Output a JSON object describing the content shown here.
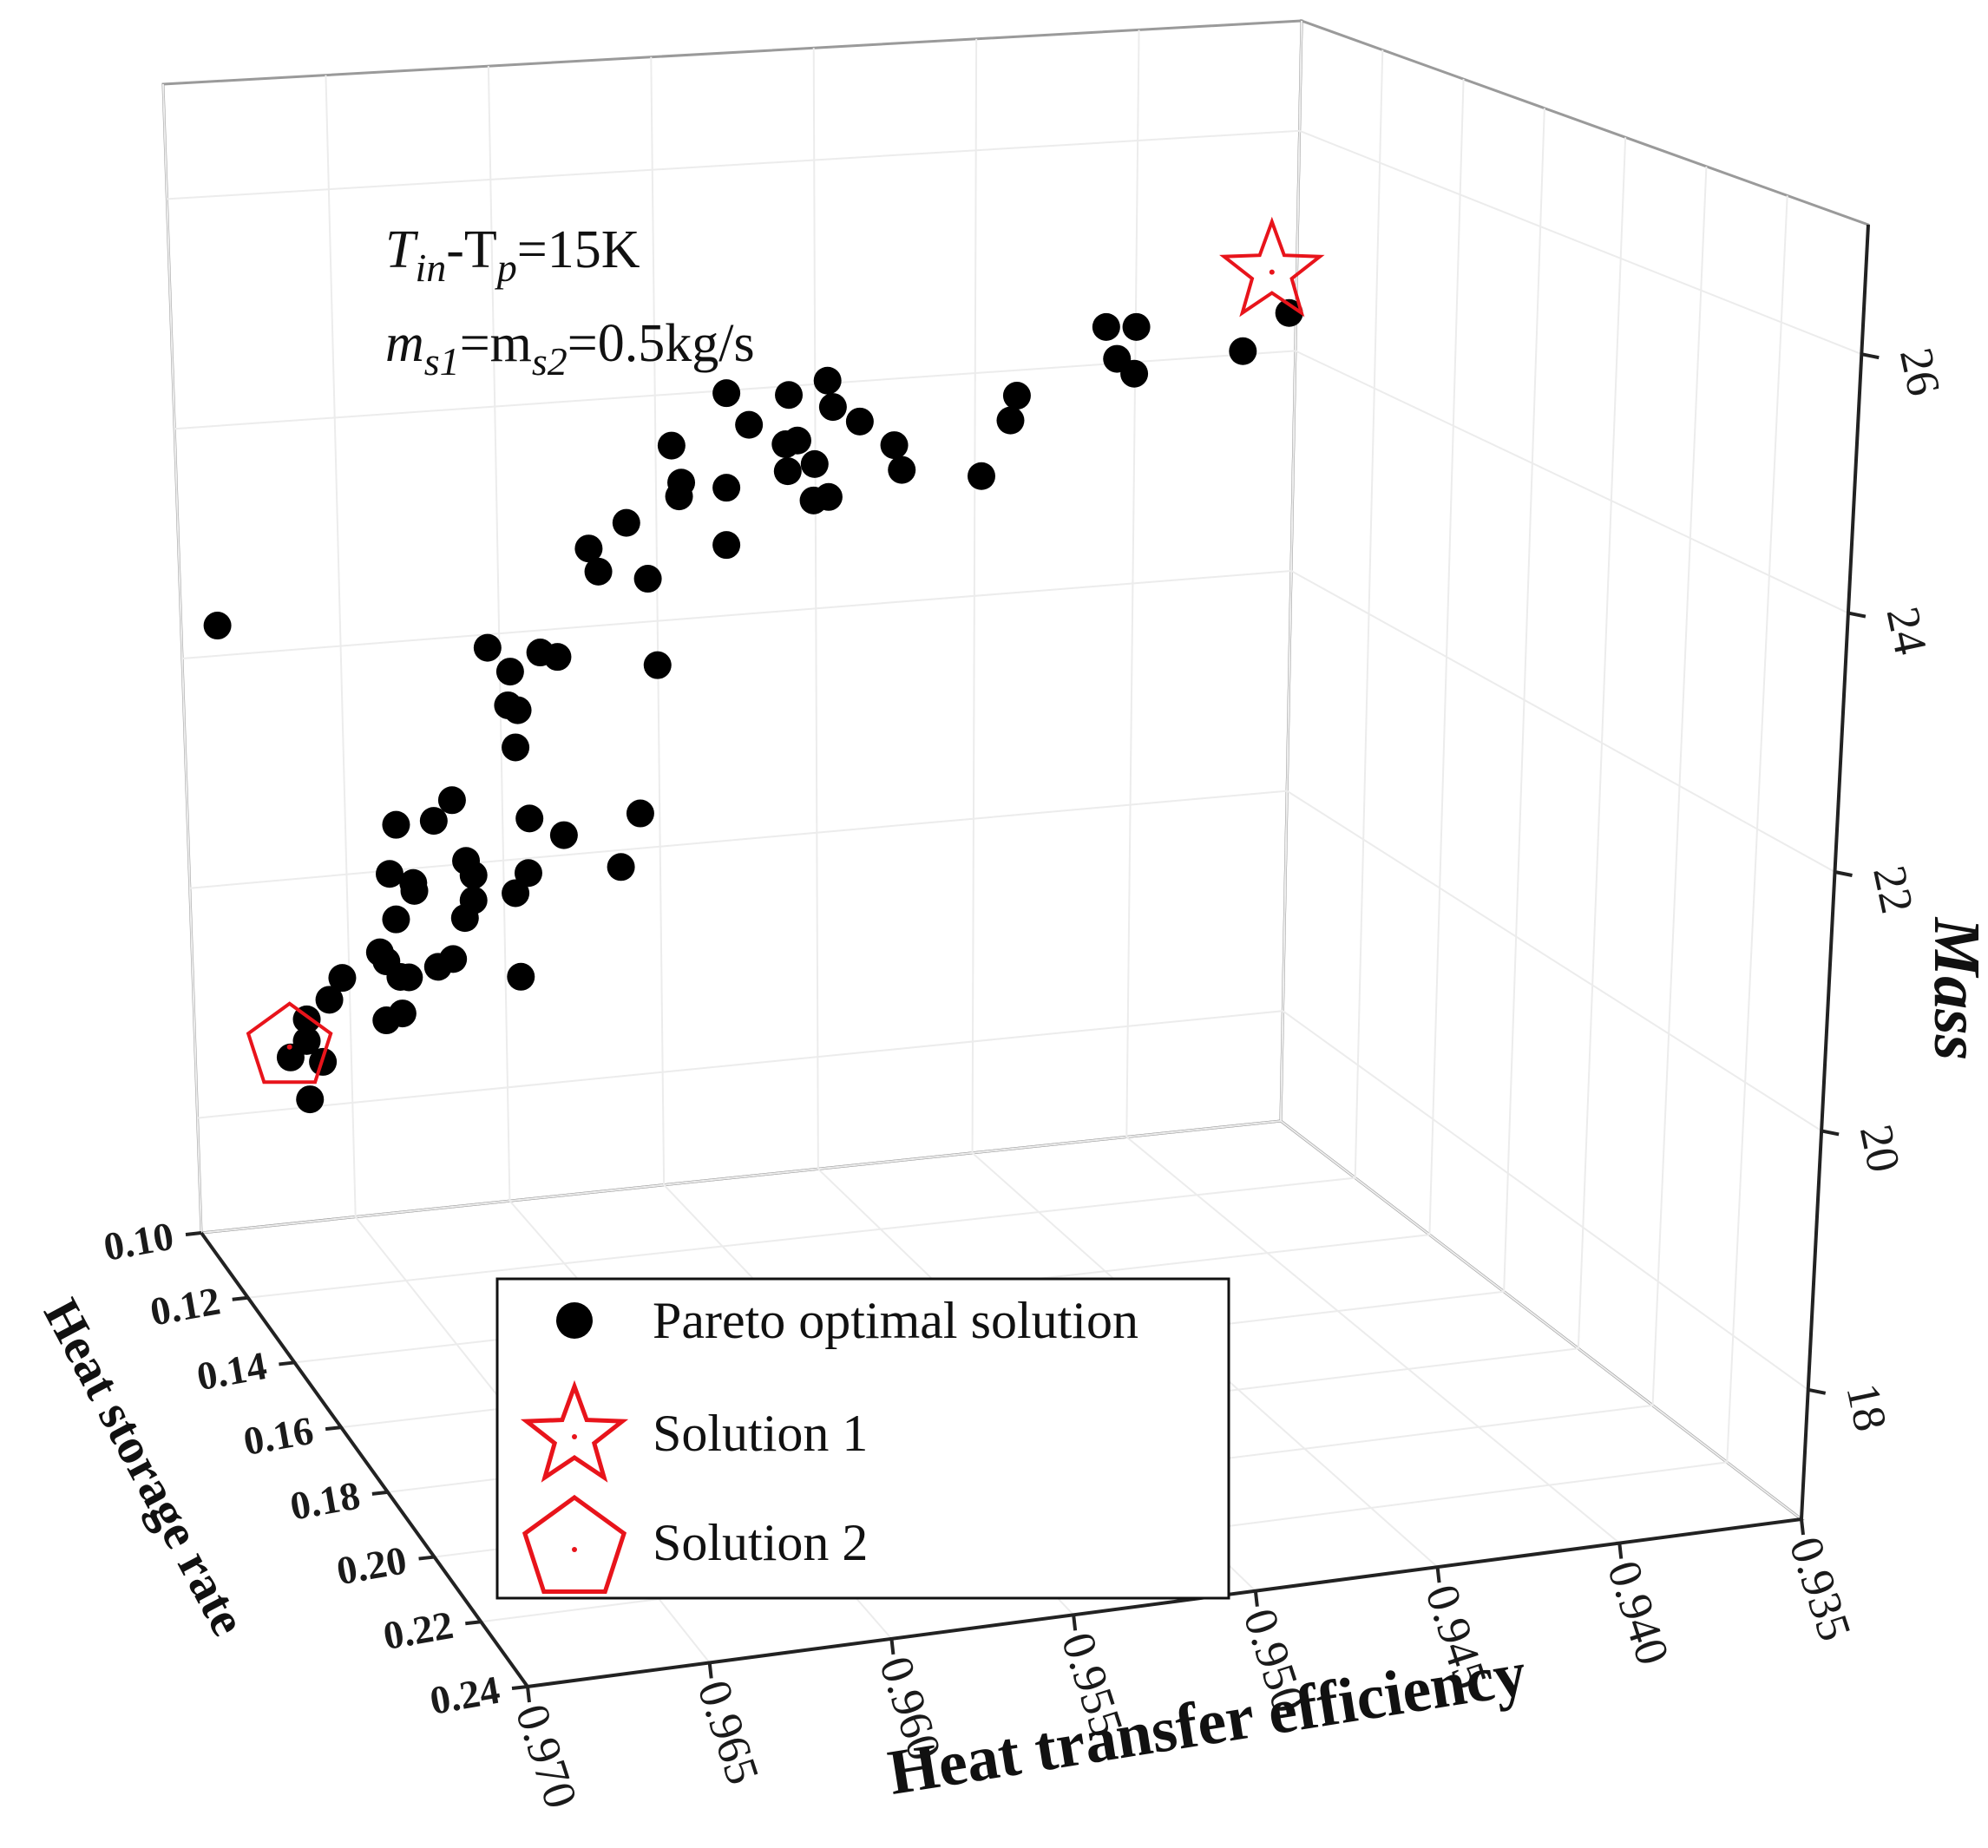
{
  "chart_data": {
    "type": "scatter",
    "dimensions": "3d",
    "axes": {
      "x": {
        "label": "Heat transfer efficiency",
        "ticks": [
          "0.970",
          "0.965",
          "0.960",
          "0.955",
          "0.950",
          "0.945",
          "0.940",
          "0.935"
        ]
      },
      "y": {
        "label": "Heat storage rate",
        "ticks": [
          "0.10",
          "0.12",
          "0.14",
          "0.16",
          "0.18",
          "0.20",
          "0.22",
          "0.24"
        ]
      },
      "z": {
        "label": "Mass",
        "ticks": [
          "18",
          "20",
          "22",
          "24",
          "26"
        ]
      }
    },
    "annotations": [
      {
        "id": "temp",
        "main": "T",
        "sub1": "in",
        "mid": "-T",
        "sub2": "p",
        "tail": "=15K"
      },
      {
        "id": "flow",
        "main": "m",
        "sub1": "s1",
        "mid": "=m",
        "sub2": "s2",
        "tail": "=0.5kg/s"
      }
    ],
    "legend": {
      "position": "bottom-center",
      "entries": [
        {
          "label": "Pareto optimal solution",
          "marker": "filled-circle",
          "color": "#000000"
        },
        {
          "label": "Solution 1",
          "marker": "star",
          "color": "#e8141b"
        },
        {
          "label": "Solution 2",
          "marker": "pentagon",
          "color": "#e8141b"
        }
      ]
    },
    "grid": true,
    "series": [
      {
        "name": "Pareto optimal solution",
        "marker": "filled-circle",
        "color": "#000000",
        "points": [
          [
            1.5,
            57
          ],
          [
            24.6,
            31.5
          ],
          [
            17.5,
            29.5
          ],
          [
            13.1,
            17.2
          ],
          [
            9.8,
            9.7
          ],
          [
            18.5,
            17.7
          ],
          [
            23.4,
            20.1
          ],
          [
            18.1,
            24.3
          ],
          [
            29.2,
            28.1
          ],
          [
            11.9,
            14.6
          ],
          [
            9.8,
            12.2
          ],
          [
            8.3,
            7.7
          ],
          [
            10.1,
            3.0
          ],
          [
            11.3,
            7.4
          ],
          [
            17.2,
            19.4
          ],
          [
            22,
            19.1
          ],
          [
            29.7,
            18.5
          ],
          [
            19.8,
            27.7
          ],
          [
            19.3,
            17.7
          ],
          [
            18.7,
            13.5
          ],
          [
            17.2,
            12.6
          ],
          [
            19.7,
            28.6
          ],
          [
            16.6,
            20.4
          ],
          [
            18.1,
            35.2
          ],
          [
            23.3,
            38.4
          ],
          [
            21.6,
            35.9
          ],
          [
            33.7,
            35.1
          ],
          [
            30.5,
            36.8
          ],
          [
            40.8,
            38.1
          ],
          [
            39,
            31.8
          ],
          [
            24.5,
            24.9
          ],
          [
            25.3,
            27
          ],
          [
            29.2,
            44.9
          ],
          [
            29.4,
            49.2
          ],
          [
            31.5,
            56
          ],
          [
            26.6,
            56.2
          ],
          [
            36,
            68.3
          ],
          [
            39.5,
            71.5
          ],
          [
            44.4,
            74.9
          ],
          [
            43.7,
            80.7
          ],
          [
            50.9,
            83.6
          ],
          [
            48.8,
            87.1
          ],
          [
            28.7,
            53.6
          ],
          [
            28.5,
            49.7
          ],
          [
            44.6,
            76.5
          ],
          [
            48.8,
            69.6
          ],
          [
            48.8,
            76.2
          ],
          [
            54.5,
            78.5
          ],
          [
            54.3,
            81.6
          ],
          [
            61.2,
            84.7
          ],
          [
            57,
            79.5
          ],
          [
            55.4,
            82.1
          ],
          [
            58.3,
            75.8
          ],
          [
            56.9,
            75.3
          ],
          [
            64.4,
            82.2
          ],
          [
            65.1,
            79.4
          ],
          [
            72.5,
            79.2
          ],
          [
            75.8,
            88.7
          ],
          [
            75.2,
            85.8
          ],
          [
            85.1,
            93.6
          ],
          [
            86.7,
            92
          ],
          [
            84.1,
            97.2
          ],
          [
            86.9,
            97.4
          ],
          [
            96.8,
            95.3
          ],
          [
            101.1,
            100
          ],
          [
            36.9,
            65.7
          ],
          [
            41.5,
            65.2
          ],
          [
            33.1,
            55.6
          ],
          [
            42.4,
            55.3
          ],
          [
            30.4,
            30.5
          ],
          [
            25.3,
            29.9
          ],
          [
            54.6,
            87.3
          ],
          [
            58.7,
            86.2
          ],
          [
            58.2,
            89.2
          ]
        ]
      },
      {
        "name": "Solution 1",
        "marker": "star",
        "color": "#e8141b",
        "points": [
          [
            99.5,
            104.6
          ]
        ]
      },
      {
        "name": "Solution 2",
        "marker": "pentagon",
        "color": "#e8141b",
        "points": [
          [
            8.2,
            8.9
          ]
        ]
      }
    ]
  }
}
